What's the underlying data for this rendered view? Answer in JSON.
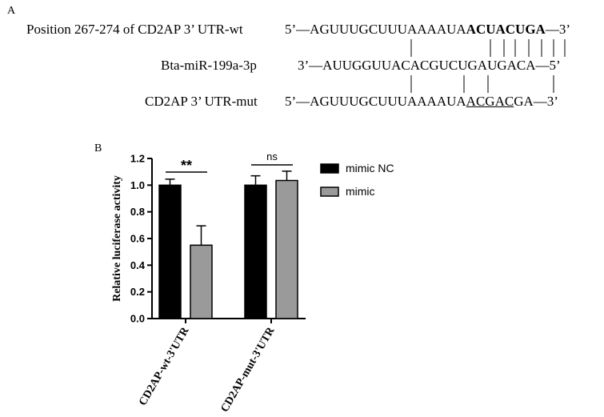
{
  "panel_a": {
    "label": "A",
    "rows": [
      {
        "name": "Position 267-274 of CD2AP 3’ UTR-wt",
        "prefix": "5’—",
        "seq_plain": "AGUUUGCUUUAAAAUA",
        "seq_bold": "ACUACUGA",
        "suffix": "—3’"
      },
      {
        "name": "Bta-miR-199a-3p",
        "prefix": "3’—",
        "seq": "AUUGGUUACACGUCUGAUGACA",
        "suffix": "—5’"
      },
      {
        "name": "CD2AP 3’ UTR-mut",
        "prefix": "5’—",
        "seq_plain": "AGUUUGCUUUAAAAUA",
        "seq_underline": "ACGAC",
        "seq_tail": "GA",
        "suffix": "—3’"
      }
    ]
  },
  "panel_b": {
    "label": "B"
  },
  "chart_data": {
    "type": "bar",
    "title": "",
    "ylabel": "Relative luciferase activity",
    "xlabel": "",
    "ylim": [
      0,
      1.2
    ],
    "yticks": [
      "0.0",
      "0.2",
      "0.4",
      "0.6",
      "0.8",
      "1.0",
      "1.2"
    ],
    "categories": [
      "CD2AP-wt-3'UTR",
      "CD2AP-mut-3'UTR"
    ],
    "series": [
      {
        "name": "mimic NC",
        "color": "#000000",
        "values": [
          1.0,
          1.0
        ],
        "errors": [
          0.045,
          0.07
        ]
      },
      {
        "name": "mimic",
        "color": "#9a9a9a",
        "values": [
          0.55,
          1.035
        ],
        "errors": [
          0.145,
          0.07
        ]
      }
    ],
    "significance": [
      "**",
      "ns"
    ],
    "legend_position": "right"
  }
}
